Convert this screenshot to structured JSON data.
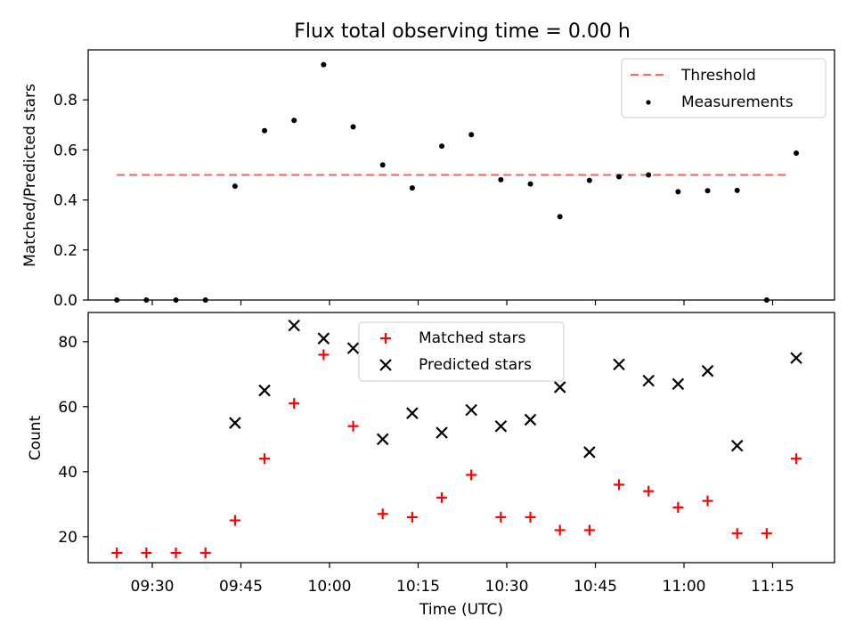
{
  "figure": {
    "title": "Flux total observing time = 0.00 h"
  },
  "colors": {
    "threshold": "#ff6b6b",
    "measurement": "#000000",
    "matched": "#ff0000",
    "predicted": "#000000"
  },
  "chart_data": [
    {
      "id": "ratio",
      "type": "scatter",
      "ylabel": "Matched/Predicted stars",
      "xlabel": "",
      "ylim": [
        0,
        1.0
      ],
      "yticks": [
        0.0,
        0.2,
        0.4,
        0.6,
        0.8
      ],
      "ytick_labels": [
        "0.0",
        "0.2",
        "0.4",
        "0.6",
        "0.8"
      ],
      "legend": {
        "placement": "top-right",
        "threshold_label": "Threshold",
        "measurements_label": "Measurements"
      },
      "threshold": {
        "name": "Threshold",
        "y": 0.5,
        "x_start": "09:24",
        "x_end": "11:18"
      },
      "series": [
        {
          "name": "Measurements",
          "x": [
            "09:24",
            "09:29",
            "09:34",
            "09:39",
            "09:44",
            "09:49",
            "09:54",
            "09:59",
            "10:04",
            "10:09",
            "10:14",
            "10:19",
            "10:24",
            "10:29",
            "10:34",
            "10:39",
            "10:44",
            "10:49",
            "10:54",
            "10:59",
            "11:04",
            "11:09",
            "11:14",
            "11:19"
          ],
          "y": [
            0.0,
            0.0,
            0.0,
            0.0,
            0.455,
            0.677,
            0.718,
            0.941,
            0.692,
            0.54,
            0.448,
            0.615,
            0.661,
            0.481,
            0.464,
            0.333,
            0.478,
            0.493,
            0.5,
            0.433,
            0.437,
            0.438,
            0.0,
            0.587
          ]
        }
      ]
    },
    {
      "id": "counts",
      "type": "scatter",
      "ylabel": "Count",
      "xlabel": "Time (UTC)",
      "ylim": [
        12,
        89
      ],
      "yticks": [
        20,
        40,
        60,
        80
      ],
      "ytick_labels": [
        "20",
        "40",
        "60",
        "80"
      ],
      "xticks": [
        "09:30",
        "09:45",
        "10:00",
        "10:15",
        "10:30",
        "10:45",
        "11:00",
        "11:15"
      ],
      "legend": {
        "placement": "top-center",
        "matched_label": "Matched stars",
        "predicted_label": "Predicted stars"
      },
      "series": [
        {
          "name": "Matched stars",
          "x": [
            "09:24",
            "09:29",
            "09:34",
            "09:39",
            "09:44",
            "09:49",
            "09:54",
            "09:59",
            "10:04",
            "10:09",
            "10:14",
            "10:19",
            "10:24",
            "10:29",
            "10:34",
            "10:39",
            "10:44",
            "10:49",
            "10:54",
            "10:59",
            "11:04",
            "11:09",
            "11:14",
            "11:19"
          ],
          "y": [
            15,
            15,
            15,
            15,
            25,
            44,
            61,
            76,
            54,
            27,
            26,
            32,
            39,
            26,
            26,
            22,
            22,
            36,
            34,
            29,
            31,
            21,
            21,
            44
          ]
        },
        {
          "name": "Predicted stars",
          "x": [
            "09:44",
            "09:49",
            "09:54",
            "09:59",
            "10:04",
            "10:09",
            "10:14",
            "10:19",
            "10:24",
            "10:29",
            "10:34",
            "10:39",
            "10:44",
            "10:49",
            "10:54",
            "10:59",
            "11:04",
            "11:09",
            "11:19"
          ],
          "y": [
            55,
            65,
            85,
            81,
            78,
            50,
            58,
            52,
            59,
            54,
            56,
            66,
            46,
            73,
            68,
            67,
            71,
            48,
            75
          ]
        }
      ]
    }
  ]
}
